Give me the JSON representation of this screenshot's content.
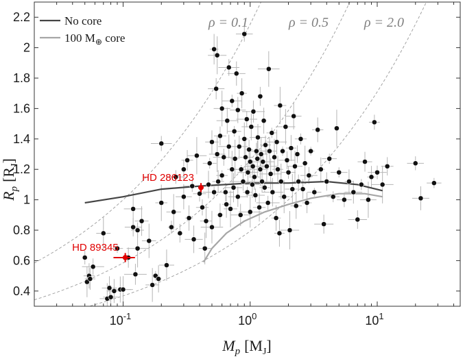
{
  "chart_data": {
    "type": "scatter",
    "title": "",
    "xlabel": {
      "symbol": "M",
      "sub": "p",
      "unit": "[M",
      "unit_sub": "J",
      "unit_end": "]"
    },
    "ylabel": {
      "symbol": "R",
      "sub": "p",
      "unit": "[R",
      "unit_sub": "J",
      "unit_end": "]"
    },
    "xscale": "log",
    "xlim": [
      0.02,
      45
    ],
    "ylim": [
      0.3,
      2.3
    ],
    "x_ticks": [
      {
        "value": 0.1,
        "base": "10",
        "exp": "-1"
      },
      {
        "value": 1,
        "base": "10",
        "exp": "0"
      },
      {
        "value": 10,
        "base": "10",
        "exp": "1"
      }
    ],
    "y_ticks": [
      0.4,
      0.6,
      0.8,
      1,
      1.2,
      1.4,
      1.6,
      1.8,
      2,
      2.2
    ],
    "y_tick_labels": [
      "0.4",
      "0.6",
      "0.8",
      "1",
      "1.2",
      "1.4",
      "1.6",
      "1.8",
      "2",
      "2.2"
    ],
    "grid": false,
    "legend_position": "top-left",
    "legend": [
      {
        "label": "No core",
        "color": "#444444"
      },
      {
        "label": "100 M",
        "sub": "⊕",
        "suffix": " core",
        "color": "#a6a6a6"
      }
    ],
    "density_curves": [
      {
        "label": "ρ = 0.1",
        "rho": 0.1
      },
      {
        "label": "ρ = 0.5",
        "rho": 0.5
      },
      {
        "label": "ρ = 2.0",
        "rho": 2.0
      }
    ],
    "model_curves": [
      {
        "name": "No core",
        "color": "#444444",
        "points": [
          [
            0.05,
            0.98
          ],
          [
            0.1,
            1.02
          ],
          [
            0.2,
            1.07
          ],
          [
            0.4,
            1.09
          ],
          [
            1,
            1.11
          ],
          [
            2,
            1.11
          ],
          [
            4,
            1.12
          ],
          [
            7,
            1.1
          ],
          [
            11,
            1.06
          ]
        ]
      },
      {
        "name": "100 M core",
        "color": "#a6a6a6",
        "points": [
          [
            0.43,
            0.59
          ],
          [
            0.5,
            0.68
          ],
          [
            0.65,
            0.78
          ],
          [
            0.9,
            0.86
          ],
          [
            1.3,
            0.92
          ],
          [
            2,
            0.97
          ],
          [
            3,
            1.01
          ],
          [
            5,
            1.04
          ],
          [
            8,
            1.04
          ],
          [
            11,
            1.02
          ]
        ]
      }
    ],
    "highlighted": [
      {
        "label": "HD 286123",
        "x": 0.41,
        "y": 1.08,
        "xerr": 0.02,
        "yerr": 0.03
      },
      {
        "label": "HD 89345",
        "x": 0.104,
        "y": 0.62,
        "xerr": 0.02,
        "yerr": 0.03
      }
    ],
    "points": [
      [
        0.05,
        0.62
      ],
      [
        0.052,
        0.46
      ],
      [
        0.054,
        0.5
      ],
      [
        0.055,
        0.48
      ],
      [
        0.058,
        0.56
      ],
      [
        0.07,
        0.78
      ],
      [
        0.075,
        0.35
      ],
      [
        0.078,
        0.42
      ],
      [
        0.08,
        0.36
      ],
      [
        0.085,
        0.4
      ],
      [
        0.09,
        0.68
      ],
      [
        0.095,
        0.41
      ],
      [
        0.1,
        0.41
      ],
      [
        0.11,
        0.62
      ],
      [
        0.12,
        0.94
      ],
      [
        0.12,
        0.82
      ],
      [
        0.125,
        0.51
      ],
      [
        0.13,
        0.8
      ],
      [
        0.13,
        0.68
      ],
      [
        0.14,
        0.86
      ],
      [
        0.16,
        0.73
      ],
      [
        0.17,
        0.44
      ],
      [
        0.18,
        0.5
      ],
      [
        0.19,
        0.48
      ],
      [
        0.2,
        0.98
      ],
      [
        0.2,
        1.37
      ],
      [
        0.22,
        0.57
      ],
      [
        0.24,
        0.82
      ],
      [
        0.25,
        0.92
      ],
      [
        0.26,
        1.15
      ],
      [
        0.28,
        0.78
      ],
      [
        0.3,
        1.02
      ],
      [
        0.3,
        1.2
      ],
      [
        0.32,
        1.26
      ],
      [
        0.33,
        0.88
      ],
      [
        0.35,
        1.09
      ],
      [
        0.36,
        0.74
      ],
      [
        0.38,
        1.29
      ],
      [
        0.4,
        1.04
      ],
      [
        0.42,
        0.95
      ],
      [
        0.44,
        0.68
      ],
      [
        0.45,
        0.86
      ],
      [
        0.47,
        1.1
      ],
      [
        0.48,
        1.24
      ],
      [
        0.5,
        1.38
      ],
      [
        0.5,
        0.82
      ],
      [
        0.52,
        1.99
      ],
      [
        0.52,
        1.05
      ],
      [
        0.54,
        1.73
      ],
      [
        0.55,
        1.95
      ],
      [
        0.55,
        1.3
      ],
      [
        0.56,
        1.12
      ],
      [
        0.58,
        1.42
      ],
      [
        0.58,
        0.9
      ],
      [
        0.6,
        1.16
      ],
      [
        0.6,
        1.6
      ],
      [
        0.62,
        1.28
      ],
      [
        0.64,
        1.05
      ],
      [
        0.65,
        0.97
      ],
      [
        0.66,
        1.52
      ],
      [
        0.68,
        1.35
      ],
      [
        0.68,
        1.87
      ],
      [
        0.7,
        0.94
      ],
      [
        0.72,
        1.2
      ],
      [
        0.72,
        1.65
      ],
      [
        0.74,
        1.08
      ],
      [
        0.75,
        1.45
      ],
      [
        0.76,
        1.27
      ],
      [
        0.78,
        1.83
      ],
      [
        0.8,
        1.02
      ],
      [
        0.8,
        1.59
      ],
      [
        0.82,
        1.35
      ],
      [
        0.84,
        0.9
      ],
      [
        0.85,
        1.2
      ],
      [
        0.86,
        1.7
      ],
      [
        0.88,
        1.12
      ],
      [
        0.9,
        2.09
      ],
      [
        0.9,
        1.4
      ],
      [
        0.92,
        1.28
      ],
      [
        0.94,
        1.53
      ],
      [
        0.95,
        1.05
      ],
      [
        0.96,
        1.18
      ],
      [
        0.98,
        1.33
      ],
      [
        1.0,
        1.25
      ],
      [
        1.0,
        0.92
      ],
      [
        1.02,
        1.48
      ],
      [
        1.04,
        1.1
      ],
      [
        1.05,
        1.22
      ],
      [
        1.06,
        1.58
      ],
      [
        1.08,
        1.15
      ],
      [
        1.1,
        1.03
      ],
      [
        1.12,
        1.32
      ],
      [
        1.14,
        1.27
      ],
      [
        1.15,
        1.41
      ],
      [
        1.18,
        0.95
      ],
      [
        1.2,
        1.2
      ],
      [
        1.2,
        1.68
      ],
      [
        1.22,
        1.3
      ],
      [
        1.24,
        1.12
      ],
      [
        1.26,
        1.25
      ],
      [
        1.28,
        1.52
      ],
      [
        1.3,
        1.08
      ],
      [
        1.32,
        1.36
      ],
      [
        1.35,
        1.22
      ],
      [
        1.38,
        0.98
      ],
      [
        1.4,
        1.86
      ],
      [
        1.42,
        1.32
      ],
      [
        1.45,
        1.17
      ],
      [
        1.48,
        1.44
      ],
      [
        1.5,
        1.05
      ],
      [
        1.55,
        1.28
      ],
      [
        1.6,
        0.88
      ],
      [
        1.62,
        1.38
      ],
      [
        1.65,
        1.2
      ],
      [
        1.7,
        0.78
      ],
      [
        1.72,
        1.62
      ],
      [
        1.75,
        1.12
      ],
      [
        1.8,
        1.32
      ],
      [
        1.85,
        1.02
      ],
      [
        1.9,
        1.48
      ],
      [
        1.95,
        1.26
      ],
      [
        2.0,
        1.18
      ],
      [
        2.05,
        0.8
      ],
      [
        2.1,
        1.34
      ],
      [
        2.15,
        1.07
      ],
      [
        2.2,
        1.55
      ],
      [
        2.25,
        1.22
      ],
      [
        2.3,
        0.96
      ],
      [
        2.35,
        1.3
      ],
      [
        2.4,
        1.12
      ],
      [
        2.5,
        1.4
      ],
      [
        2.6,
        1.07
      ],
      [
        2.7,
        1.24
      ],
      [
        2.8,
        0.98
      ],
      [
        2.9,
        1.16
      ],
      [
        3.0,
        1.32
      ],
      [
        3.2,
        1.05
      ],
      [
        3.4,
        1.46
      ],
      [
        3.6,
        1.2
      ],
      [
        3.8,
        0.84
      ],
      [
        4.0,
        1.12
      ],
      [
        4.2,
        1.27
      ],
      [
        4.5,
        1.02
      ],
      [
        4.8,
        1.47
      ],
      [
        5.0,
        1.18
      ],
      [
        5.5,
        1.0
      ],
      [
        6.0,
        1.12
      ],
      [
        6.5,
        1.05
      ],
      [
        7.0,
        0.87
      ],
      [
        7.5,
        1.1
      ],
      [
        8.0,
        1.25
      ],
      [
        8.5,
        1.0
      ],
      [
        9.0,
        1.15
      ],
      [
        9.5,
        1.51
      ],
      [
        10.0,
        1.18
      ],
      [
        11.0,
        1.1
      ],
      [
        12.0,
        1.22
      ],
      [
        20.0,
        1.24
      ],
      [
        22.0,
        1.01
      ],
      [
        28.0,
        1.11
      ]
    ]
  }
}
